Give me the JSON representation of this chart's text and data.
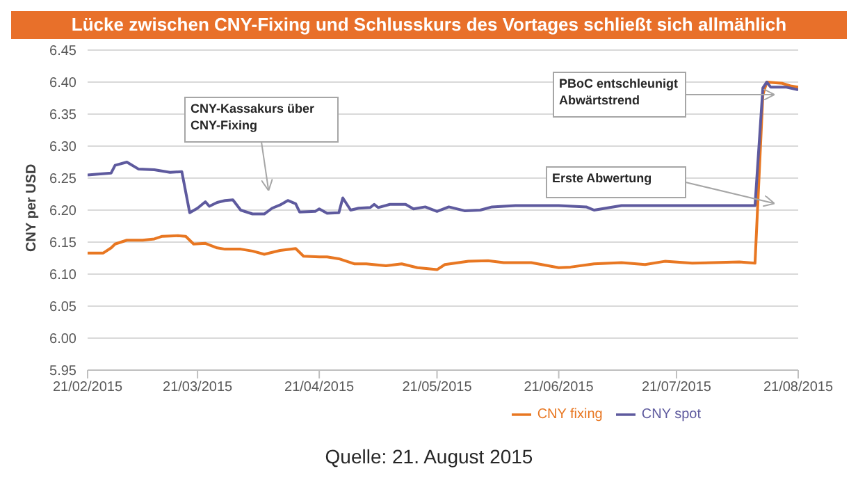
{
  "chart_data": {
    "type": "line",
    "title": "Lücke zwischen CNY-Fixing und Schlusskurs des Vortages schließt sich allmählich",
    "ylabel": "CNY per USD",
    "xlim": [
      "2015-02-21",
      "2015-08-21"
    ],
    "xticks": [
      {
        "value": "2015-02-21",
        "label": "21/02/2015"
      },
      {
        "value": "2015-03-21",
        "label": "21/03/2015"
      },
      {
        "value": "2015-04-21",
        "label": "21/04/2015"
      },
      {
        "value": "2015-05-21",
        "label": "21/05/2015"
      },
      {
        "value": "2015-06-21",
        "label": "21/06/2015"
      },
      {
        "value": "2015-07-21",
        "label": "21/07/2015"
      },
      {
        "value": "2015-08-21",
        "label": "21/08/2015"
      }
    ],
    "ylim": [
      5.95,
      6.45
    ],
    "yticks": [
      5.95,
      {
        "value": 6.0,
        "label": "6.00"
      },
      6.05,
      {
        "value": 6.1,
        "label": "6.10"
      },
      6.15,
      {
        "value": 6.2,
        "label": "6.20"
      },
      6.25,
      {
        "value": 6.3,
        "label": "6.30"
      },
      6.35,
      {
        "value": 6.4,
        "label": "6.40"
      },
      6.45
    ],
    "grid": "y",
    "legend": "bottom",
    "marker": "none",
    "line_style": "solid",
    "series": [
      {
        "name": "CNY fixing",
        "color": "#e87722",
        "x": [
          "2015-02-21",
          "2015-02-25",
          "2015-02-27",
          "2015-02-28",
          "2015-03-03",
          "2015-03-07",
          "2015-03-10",
          "2015-03-12",
          "2015-03-16",
          "2015-03-18",
          "2015-03-20",
          "2015-03-23",
          "2015-03-26",
          "2015-03-28",
          "2015-04-01",
          "2015-04-04",
          "2015-04-07",
          "2015-04-11",
          "2015-04-15",
          "2015-04-17",
          "2015-04-21",
          "2015-04-23",
          "2015-04-26",
          "2015-04-30",
          "2015-05-03",
          "2015-05-08",
          "2015-05-12",
          "2015-05-16",
          "2015-05-21",
          "2015-05-23",
          "2015-05-29",
          "2015-06-03",
          "2015-06-07",
          "2015-06-14",
          "2015-06-21",
          "2015-06-24",
          "2015-06-30",
          "2015-07-07",
          "2015-07-13",
          "2015-07-18",
          "2015-07-25",
          "2015-08-06",
          "2015-08-10",
          "2015-08-12",
          "2015-08-13",
          "2015-08-17",
          "2015-08-19",
          "2015-08-21"
        ],
        "values": [
          6.133,
          6.133,
          6.141,
          6.147,
          6.153,
          6.153,
          6.155,
          6.159,
          6.16,
          6.159,
          6.147,
          6.148,
          6.141,
          6.139,
          6.139,
          6.136,
          6.131,
          6.137,
          6.14,
          6.128,
          6.127,
          6.127,
          6.124,
          6.116,
          6.116,
          6.113,
          6.116,
          6.11,
          6.107,
          6.115,
          6.12,
          6.121,
          6.118,
          6.118,
          6.11,
          6.111,
          6.116,
          6.118,
          6.115,
          6.12,
          6.117,
          6.119,
          6.117,
          6.38,
          6.4,
          6.398,
          6.394,
          6.392
        ]
      },
      {
        "name": "CNY spot",
        "color": "#5e5a9e",
        "x": [
          "2015-02-21",
          "2015-02-27",
          "2015-02-28",
          "2015-03-03",
          "2015-03-06",
          "2015-03-10",
          "2015-03-14",
          "2015-03-17",
          "2015-03-19",
          "2015-03-21",
          "2015-03-23",
          "2015-03-24",
          "2015-03-26",
          "2015-03-28",
          "2015-03-30",
          "2015-04-01",
          "2015-04-04",
          "2015-04-07",
          "2015-04-09",
          "2015-04-11",
          "2015-04-13",
          "2015-04-15",
          "2015-04-16",
          "2015-04-20",
          "2015-04-21",
          "2015-04-23",
          "2015-04-26",
          "2015-04-27",
          "2015-04-29",
          "2015-05-01",
          "2015-05-04",
          "2015-05-05",
          "2015-05-06",
          "2015-05-09",
          "2015-05-13",
          "2015-05-15",
          "2015-05-18",
          "2015-05-21",
          "2015-05-24",
          "2015-05-28",
          "2015-06-01",
          "2015-06-04",
          "2015-06-10",
          "2015-06-21",
          "2015-06-28",
          "2015-06-30",
          "2015-07-07",
          "2015-07-21",
          "2015-08-10",
          "2015-08-12",
          "2015-08-13",
          "2015-08-14",
          "2015-08-18",
          "2015-08-21"
        ],
        "values": [
          6.255,
          6.258,
          6.27,
          6.275,
          6.264,
          6.263,
          6.259,
          6.26,
          6.196,
          6.203,
          6.213,
          6.206,
          6.212,
          6.215,
          6.216,
          6.2,
          6.194,
          6.194,
          6.203,
          6.208,
          6.215,
          6.21,
          6.197,
          6.198,
          6.202,
          6.195,
          6.196,
          6.219,
          6.2,
          6.203,
          6.204,
          6.209,
          6.204,
          6.209,
          6.209,
          6.202,
          6.205,
          6.198,
          6.205,
          6.199,
          6.2,
          6.205,
          6.207,
          6.207,
          6.205,
          6.2,
          6.207,
          6.207,
          6.207,
          6.391,
          6.4,
          6.392,
          6.392,
          6.388
        ]
      }
    ],
    "annotations": [
      "CNY-Kassakurs über CNY-Fixing",
      "PBoC entschleunigt Abwärtstrend",
      "Erste Abwertung",
      "Quelle: 21. August 2015"
    ]
  }
}
